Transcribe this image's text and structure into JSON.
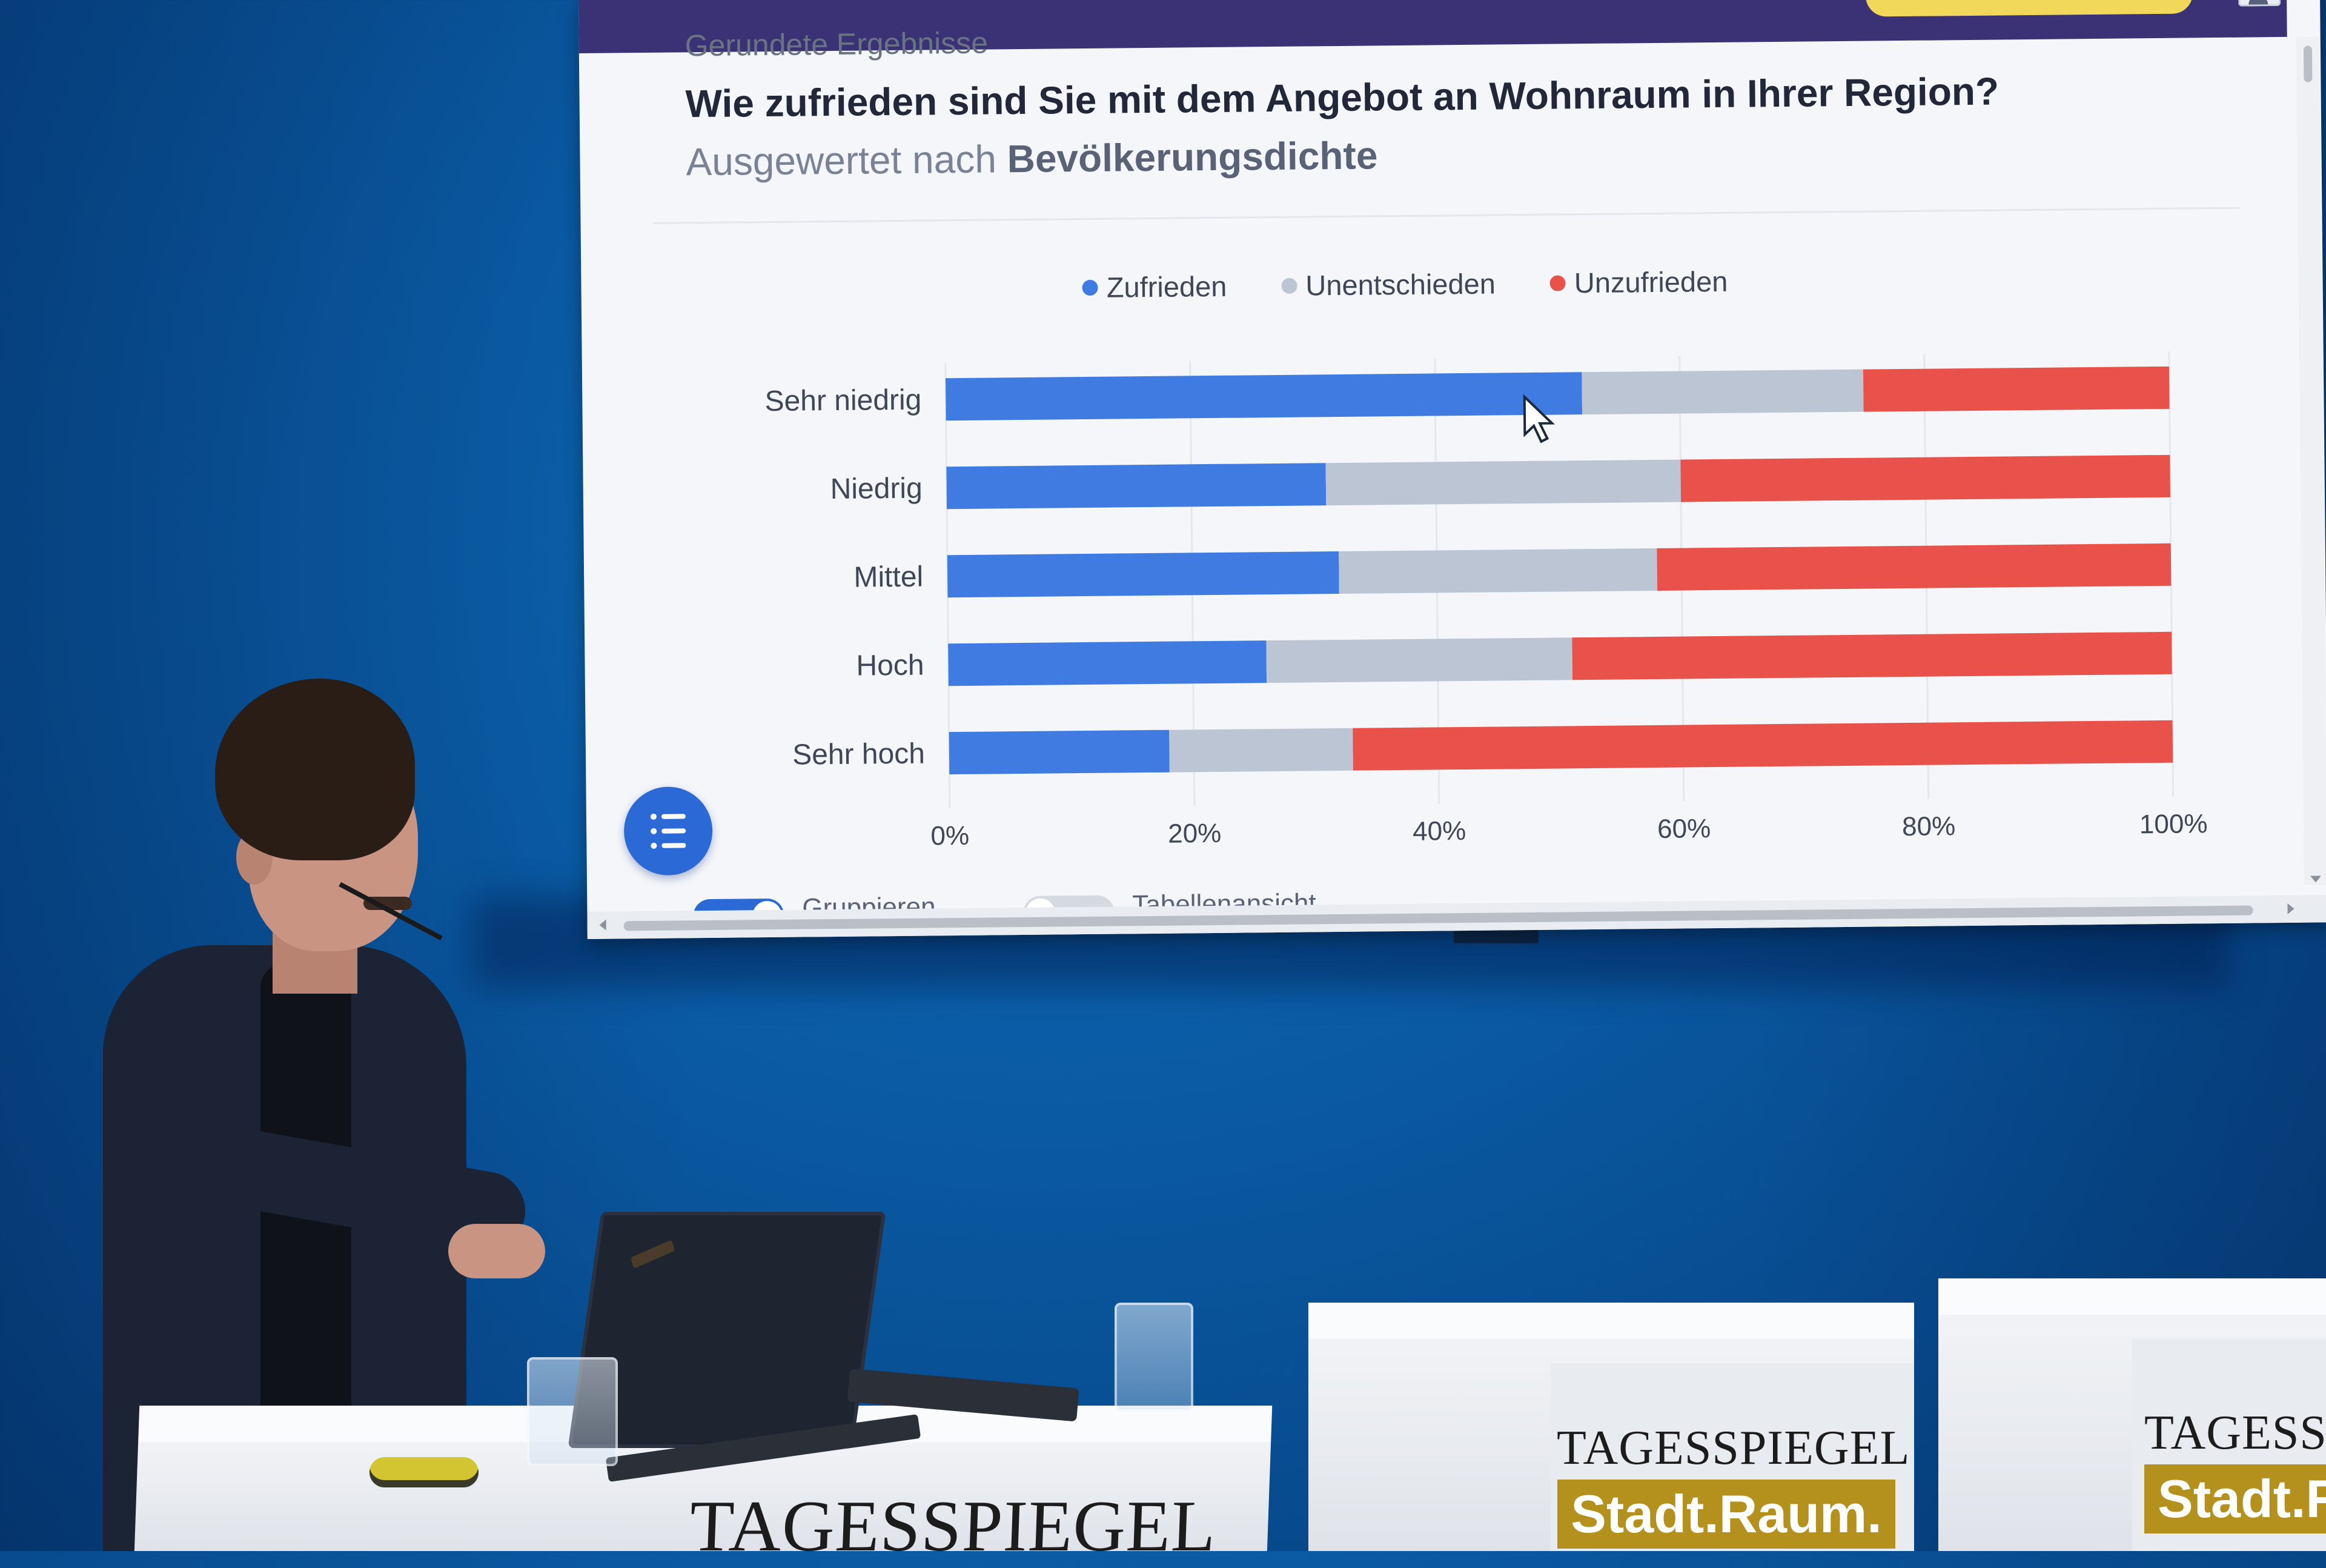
{
  "presentation": {
    "eyebrow": "Gerundete Ergebnisse",
    "question": "Wie zufrieden sind Sie mit dem Angebot an Wohnraum in Ihrer Region?",
    "subtitle_prefix": "Ausgewertet nach",
    "subtitle_strong": "Bevölkerungsdichte",
    "toggles": [
      {
        "label": "Gruppieren",
        "on": true
      },
      {
        "label": "Tabellenansicht",
        "on": false
      }
    ]
  },
  "chart_data": {
    "type": "bar",
    "orientation": "horizontal",
    "stacked": true,
    "categories": [
      "Sehr niedrig",
      "Niedrig",
      "Mittel",
      "Hoch",
      "Sehr hoch"
    ],
    "series": [
      {
        "name": "Zufrieden",
        "color": "#3f7be0",
        "values": [
          52,
          31,
          32,
          26,
          18
        ]
      },
      {
        "name": "Unentschieden",
        "color": "#bcc5d3",
        "values": [
          23,
          29,
          26,
          25,
          15
        ]
      },
      {
        "name": "Unzufrieden",
        "color": "#e8524a",
        "values": [
          25,
          40,
          42,
          49,
          67
        ]
      }
    ],
    "xticks": [
      "0%",
      "20%",
      "40%",
      "60%",
      "80%",
      "100%"
    ],
    "xlim": [
      0,
      100
    ],
    "legend": "top-center",
    "grid": true
  },
  "stage": {
    "brand_name": "TAGESSPIEGEL",
    "brand_event": "Stadt.Raum."
  }
}
